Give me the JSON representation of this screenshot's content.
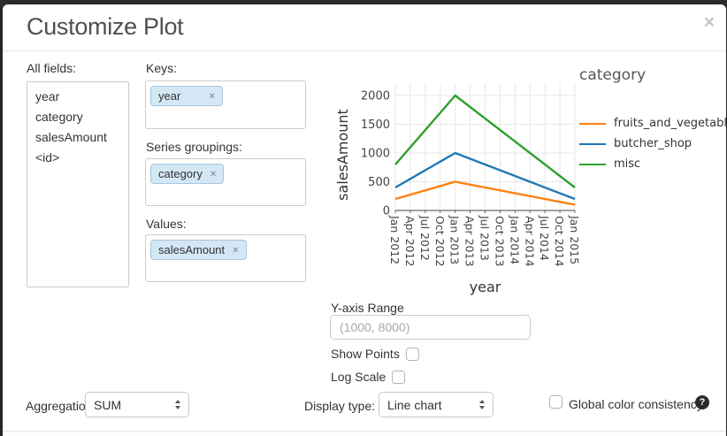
{
  "dialog": {
    "title": "Customize Plot",
    "close_glyph": "×"
  },
  "fields_panel": {
    "label": "All fields:",
    "items": [
      "year",
      "category",
      "salesAmount",
      "<id>"
    ]
  },
  "keys_panel": {
    "label": "Keys:",
    "tag": "year",
    "remove_glyph": "×"
  },
  "series_panel": {
    "label": "Series groupings:",
    "tag": "category",
    "remove_glyph": "×"
  },
  "values_panel": {
    "label": "Values:",
    "tag": "salesAmount",
    "remove_glyph": "×"
  },
  "chart_data": {
    "type": "line",
    "xlabel": "year",
    "ylabel": "salesAmount",
    "legend_title": "category",
    "legend_position": "right",
    "grid": true,
    "ylim": [
      0,
      2000
    ],
    "y_ticks": [
      0,
      500,
      1000,
      1500,
      2000
    ],
    "x_ticks": [
      "Jan 2012",
      "Apr 2012",
      "Jul 2012",
      "Oct 2012",
      "Jan 2013",
      "Apr 2013",
      "Jul 2013",
      "Oct 2013",
      "Jan 2014",
      "Apr 2014",
      "Jul 2014",
      "Oct 2014",
      "Jan 2015"
    ],
    "series": [
      {
        "name": "fruits_and_vegetables",
        "color": "#ff7f0e",
        "x": [
          "Jan 2012",
          "Jan 2013",
          "Jan 2015"
        ],
        "values": [
          200,
          500,
          100
        ]
      },
      {
        "name": "butcher_shop",
        "color": "#1f77b4",
        "x": [
          "Jan 2012",
          "Jan 2013",
          "Jan 2015"
        ],
        "values": [
          400,
          1000,
          200
        ]
      },
      {
        "name": "misc",
        "color": "#2ca02c",
        "x": [
          "Jan 2012",
          "Jan 2013",
          "Jan 2015"
        ],
        "values": [
          800,
          2000,
          400
        ]
      }
    ]
  },
  "controls": {
    "y_axis_range_label": "Y-axis Range",
    "y_axis_range_placeholder": "(1000, 8000)",
    "y_axis_range_value": "",
    "show_points_label": "Show Points",
    "show_points_checked": false,
    "log_scale_label": "Log Scale",
    "log_scale_checked": false
  },
  "footer_controls": {
    "aggregation_label": "Aggregation:",
    "aggregation_value": "SUM",
    "display_type_label": "Display type:",
    "display_type_value": "Line chart",
    "global_color_label": "Global color consistency",
    "global_color_checked": false,
    "help_glyph": "?"
  }
}
